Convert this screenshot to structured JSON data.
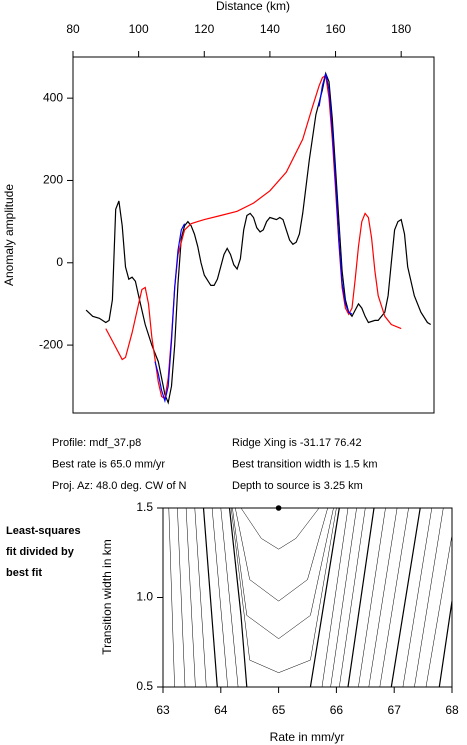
{
  "chart_data": [
    {
      "type": "line",
      "x_label": "Distance (km)",
      "y_label": "Anomaly amplitude",
      "xlim": [
        80,
        190
      ],
      "ylim": [
        -365,
        500
      ],
      "xticks": [
        80,
        100,
        120,
        140,
        160,
        180
      ],
      "yticks": [
        -200,
        0,
        200,
        400
      ],
      "series": [
        {
          "color": "#000000",
          "x": [
            84,
            86,
            88,
            90,
            91,
            92,
            93,
            94,
            95,
            96,
            97,
            98,
            99,
            100,
            102,
            104,
            106,
            107,
            108,
            109,
            110,
            111,
            112,
            113,
            114,
            115,
            116,
            117,
            118,
            119,
            120,
            122,
            123,
            124,
            126,
            127,
            128,
            129,
            130,
            131,
            132,
            133,
            134,
            135,
            136,
            137,
            138,
            139,
            140,
            142,
            143,
            144,
            145,
            146,
            147,
            148,
            149,
            150,
            152,
            154,
            156,
            157,
            158,
            159,
            160,
            162,
            163,
            164,
            165,
            166,
            167,
            168,
            169,
            170,
            172,
            173,
            175,
            176,
            177,
            178,
            179,
            180,
            181,
            182,
            184,
            186,
            188,
            189
          ],
          "values": [
            -115,
            -130,
            -135,
            -145,
            -140,
            -90,
            130,
            150,
            90,
            -10,
            -40,
            -35,
            -45,
            -80,
            -150,
            -200,
            -240,
            -280,
            -320,
            -340,
            -300,
            -200,
            -50,
            60,
            90,
            100,
            90,
            70,
            40,
            0,
            -30,
            -55,
            -55,
            -40,
            20,
            35,
            20,
            -5,
            -15,
            10,
            80,
            115,
            120,
            110,
            85,
            75,
            80,
            100,
            110,
            105,
            110,
            105,
            80,
            55,
            45,
            50,
            70,
            120,
            250,
            360,
            420,
            460,
            440,
            350,
            230,
            -20,
            -90,
            -120,
            -130,
            -115,
            -100,
            -110,
            -130,
            -145,
            -140,
            -140,
            -120,
            -80,
            0,
            80,
            100,
            105,
            70,
            -10,
            -80,
            -120,
            -145,
            -150
          ]
        },
        {
          "color": "#ff0000",
          "x": [
            90,
            92,
            94,
            95,
            96,
            98,
            100,
            101,
            102,
            103,
            104,
            106,
            107,
            108,
            109,
            110,
            111,
            112,
            114,
            116,
            118,
            120,
            125,
            130,
            135,
            140,
            145,
            150,
            153,
            155,
            156,
            157,
            158,
            159,
            160,
            161,
            162,
            163,
            164,
            165,
            166,
            167,
            168,
            169,
            170,
            171,
            172,
            173,
            175,
            177,
            180
          ],
          "values": [
            -160,
            -190,
            -220,
            -235,
            -230,
            -170,
            -100,
            -65,
            -60,
            -100,
            -180,
            -290,
            -325,
            -330,
            -280,
            -180,
            -60,
            20,
            80,
            95,
            100,
            105,
            115,
            125,
            145,
            175,
            220,
            300,
            380,
            430,
            450,
            455,
            400,
            300,
            180,
            50,
            -60,
            -110,
            -125,
            -110,
            -40,
            40,
            100,
            120,
            110,
            60,
            -20,
            -80,
            -130,
            -150,
            -160
          ]
        },
        {
          "color": "#0000ff",
          "x": [
            105,
            106,
            107,
            108,
            109,
            110,
            111,
            112,
            113,
            114,
            130,
            155,
            156,
            157,
            158,
            159,
            160,
            161,
            162,
            163,
            164,
            165
          ],
          "values": [
            -240,
            -270,
            -310,
            -335,
            -300,
            -190,
            -60,
            30,
            80,
            95,
            null,
            380,
            430,
            460,
            420,
            320,
            200,
            60,
            -50,
            -100,
            -120,
            -125
          ]
        }
      ],
      "annotations": [
        "Profile: mdf_37.p8",
        "Best rate is 65.0 mm/yr",
        "Proj. Az: 48.0 deg. CW of N",
        "Ridge Xing is -31.17 76.42",
        "Best transition width is 1.5 km",
        "Depth to source is   3.25 km"
      ]
    },
    {
      "type": "contour",
      "x_label": "Rate in mm/yr",
      "y_label": "Transition width in km",
      "xlim": [
        63,
        68
      ],
      "ylim": [
        0.5,
        1.5
      ],
      "xticks": [
        63,
        64,
        65,
        66,
        67,
        68
      ],
      "yticks": [
        0.5,
        {
          "value": 1,
          "label": "1.0"
        },
        1.5
      ],
      "note": [
        "Least-squares",
        "fit divided by",
        "best fit"
      ],
      "best": {
        "x": 65.0,
        "y": 1.5
      },
      "contours": [
        {
          "x": [
            63.1,
            63.2
          ],
          "y": [
            1.5,
            0.5
          ],
          "width": 0.5
        },
        {
          "x": [
            63.25,
            63.38
          ],
          "y": [
            1.5,
            0.5
          ],
          "width": 0.5
        },
        {
          "x": [
            63.4,
            63.56
          ],
          "y": [
            1.5,
            0.5
          ],
          "width": 0.5
        },
        {
          "x": [
            63.55,
            63.75
          ],
          "y": [
            1.5,
            0.5
          ],
          "width": 0.5
        },
        {
          "x": [
            63.7,
            63.94
          ],
          "y": [
            1.5,
            0.5
          ],
          "width": 1.2
        },
        {
          "x": [
            63.85,
            64.12
          ],
          "y": [
            1.5,
            0.5
          ],
          "width": 0.5
        },
        {
          "x": [
            64.0,
            64.3
          ],
          "y": [
            1.5,
            0.5
          ],
          "width": 0.5
        },
        {
          "x": [
            64.15,
            64.35,
            64.45
          ],
          "y": [
            1.5,
            0.9,
            0.5
          ],
          "width": 1.2
        },
        {
          "x": [
            64.35,
            64.7,
            65.0,
            65.3,
            65.7
          ],
          "y": [
            1.5,
            1.33,
            1.27,
            1.33,
            1.5
          ],
          "width": 0.5
        },
        {
          "x": [
            64.25,
            64.5,
            65.0,
            65.5,
            65.85
          ],
          "y": [
            1.5,
            1.1,
            0.98,
            1.1,
            1.5
          ],
          "width": 0.5
        },
        {
          "x": [
            64.2,
            64.45,
            65.0,
            65.55,
            65.95
          ],
          "y": [
            1.5,
            0.9,
            0.77,
            0.9,
            1.5
          ],
          "width": 0.5
        },
        {
          "x": [
            64.18,
            64.5,
            65.0,
            65.55,
            66.0
          ],
          "y": [
            1.5,
            0.65,
            0.58,
            0.65,
            1.5
          ],
          "width": 0.5
        },
        {
          "x": [
            66.05,
            65.75,
            65.55
          ],
          "y": [
            1.5,
            0.9,
            0.5
          ],
          "width": 1.2
        },
        {
          "x": [
            66.2,
            65.75
          ],
          "y": [
            1.5,
            0.5
          ],
          "width": 0.5
        },
        {
          "x": [
            66.35,
            65.9
          ],
          "y": [
            1.5,
            0.5
          ],
          "width": 0.5
        },
        {
          "x": [
            66.5,
            66.05
          ],
          "y": [
            1.5,
            0.5
          ],
          "width": 0.5
        },
        {
          "x": [
            66.65,
            66.2
          ],
          "y": [
            1.5,
            0.5
          ],
          "width": 1.2
        },
        {
          "x": [
            66.85,
            66.38
          ],
          "y": [
            1.5,
            0.5
          ],
          "width": 0.5
        },
        {
          "x": [
            67.05,
            66.56
          ],
          "y": [
            1.5,
            0.5
          ],
          "width": 0.5
        },
        {
          "x": [
            67.25,
            66.75
          ],
          "y": [
            1.5,
            0.5
          ],
          "width": 0.5
        },
        {
          "x": [
            67.45,
            66.95
          ],
          "y": [
            1.5,
            0.5
          ],
          "width": 1.2
        },
        {
          "x": [
            67.65,
            67.15
          ],
          "y": [
            1.5,
            0.5
          ],
          "width": 0.5
        },
        {
          "x": [
            67.85,
            67.35
          ],
          "y": [
            1.5,
            0.5
          ],
          "width": 0.5
        },
        {
          "x": [
            68.0,
            67.55
          ],
          "y": [
            1.35,
            0.5
          ],
          "width": 0.5
        },
        {
          "x": [
            68.0,
            67.78
          ],
          "y": [
            0.98,
            0.5
          ],
          "width": 1.2
        }
      ]
    }
  ]
}
